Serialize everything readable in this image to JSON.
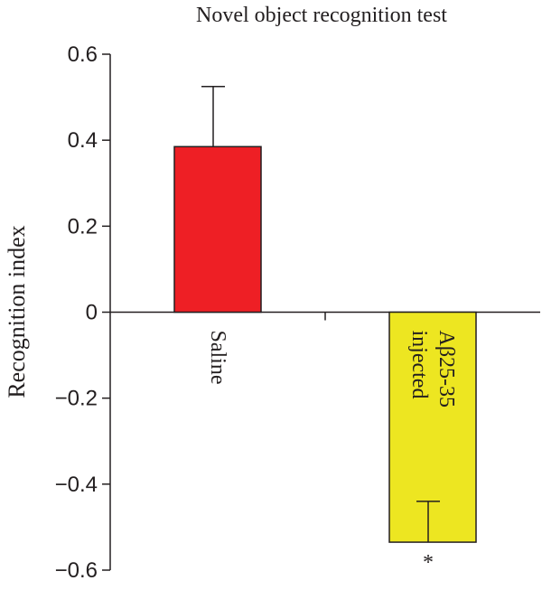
{
  "chart_data": {
    "type": "bar",
    "title": "Novel object recognition test",
    "ylabel": "Recognition index",
    "xlabel": "",
    "ylim": [
      -0.6,
      0.6
    ],
    "yticks": [
      0.6,
      0.4,
      0.2,
      0,
      -0.2,
      -0.4,
      -0.6
    ],
    "ytick_labels": [
      "0.6",
      "0.4",
      "0.2",
      "0",
      "−0.2",
      "−0.4",
      "−0.6"
    ],
    "grid": false,
    "categories": [
      {
        "lines": [
          "Saline"
        ]
      },
      {
        "lines": [
          "Aβ25-35",
          "injected"
        ]
      }
    ],
    "values": [
      0.385,
      -0.535
    ],
    "errors": [
      0.14,
      0.095
    ],
    "colors": [
      "#ee1f25",
      "#ede621"
    ],
    "significance": [
      "",
      "*"
    ]
  }
}
